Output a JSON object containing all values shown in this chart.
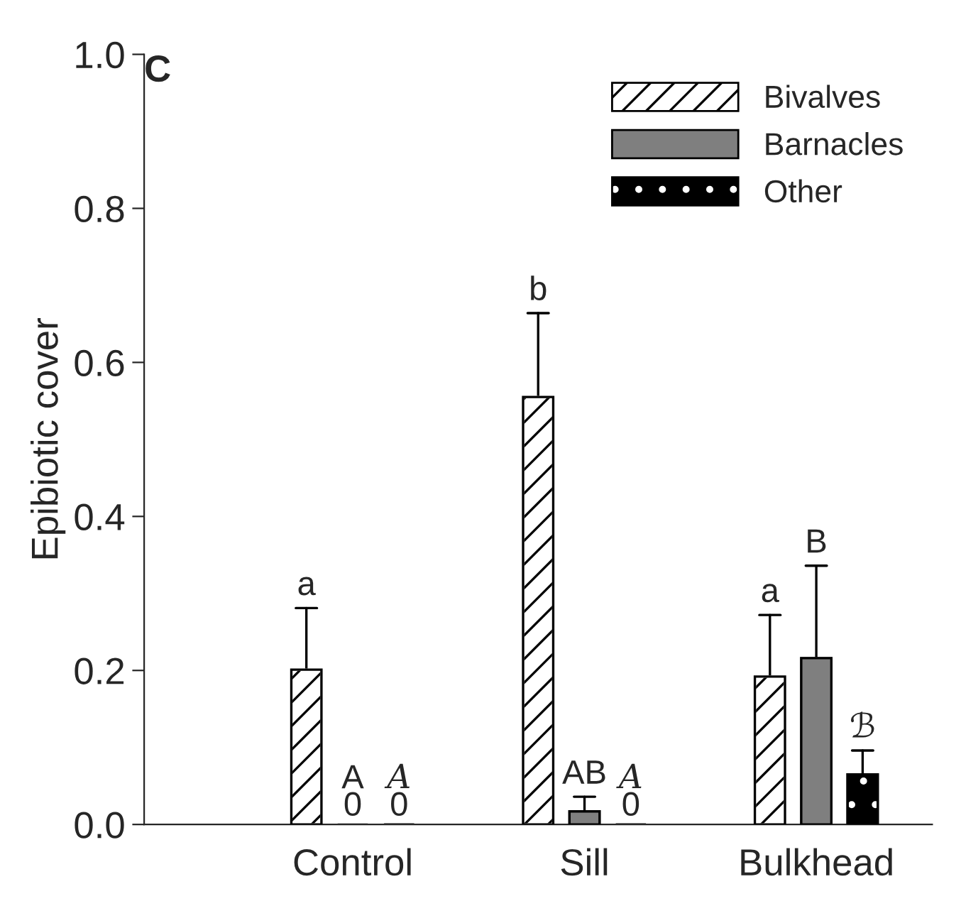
{
  "chart_data": {
    "type": "bar",
    "ylabel": "Epibiotic cover",
    "categories": [
      "Control",
      "Sill",
      "Bulkhead"
    ],
    "series": [
      {
        "name": "Bivalves",
        "color": "#ffffff",
        "values": [
          0.201,
          0.555,
          0.192
        ],
        "errors": [
          [
            0.201,
            0.281
          ],
          [
            0.555,
            0.664
          ],
          [
            0.192,
            0.272
          ]
        ]
      },
      {
        "name": "Barnacles",
        "color": "#7f7f7f",
        "values": [
          0,
          0.017,
          0.216
        ],
        "errors": [
          null,
          [
            0.017,
            0.036
          ],
          [
            0.216,
            0.336
          ]
        ],
        "value_labels": [
          "0",
          null,
          null
        ]
      },
      {
        "name": "Other",
        "color": "#000000",
        "values": [
          0,
          0,
          0.065
        ],
        "errors": [
          null,
          null,
          [
            0.065,
            0.096
          ]
        ],
        "value_labels": [
          "0",
          "0",
          null
        ]
      }
    ],
    "ylim": [
      0,
      1.0
    ],
    "yticks": [
      {
        "value": 0,
        "label": "0.0"
      },
      {
        "value": 0.2,
        "label": "0.2"
      },
      {
        "value": 0.4,
        "label": "0.4"
      },
      {
        "value": 0.6,
        "label": "0.6"
      },
      {
        "value": 0.8,
        "label": "0.8"
      },
      {
        "value": 1.0,
        "label": "1.0"
      }
    ],
    "legend": "top right",
    "grid": false,
    "annotations": [
      "C",
      "a",
      "A",
      "A",
      "b",
      "AB",
      "A",
      "a",
      "B",
      "ℬ"
    ]
  }
}
